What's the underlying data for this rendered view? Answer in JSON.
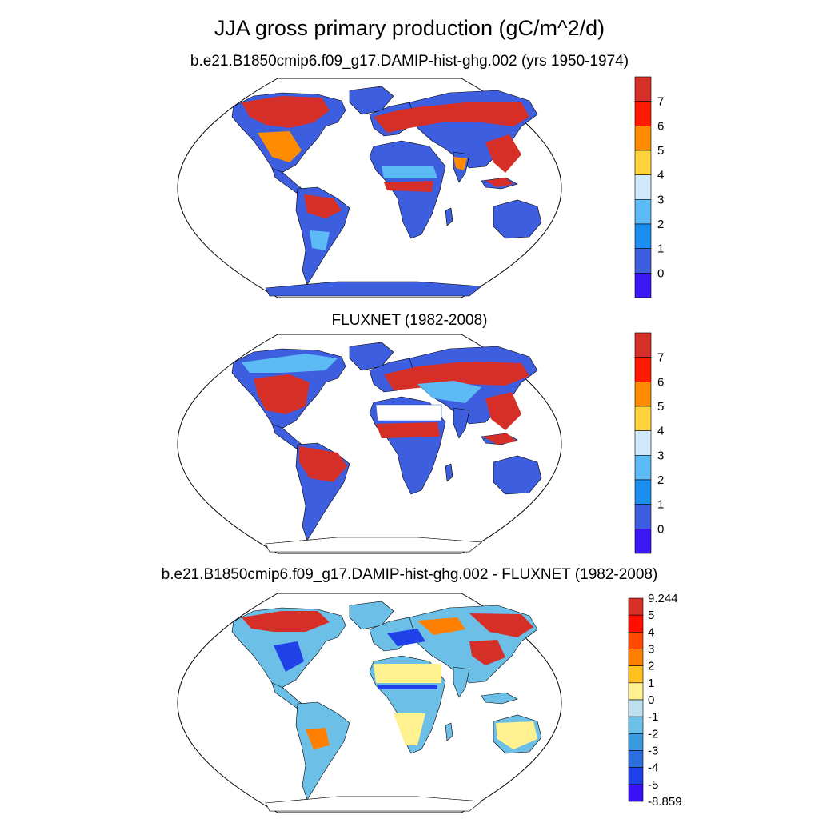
{
  "main_title": "JJA gross primary production (gC/m^2/d)",
  "panels": [
    {
      "subtitle": "b.e21.B1850cmip6.f09_g17.DAMIP-hist-ghg.002 (yrs 1950-1974)"
    },
    {
      "subtitle": "FLUXNET (1982-2008)"
    },
    {
      "subtitle": "b.e21.B1850cmip6.f09_g17.DAMIP-hist-ghg.002 - FLUXNET (1982-2008)"
    }
  ],
  "colorbar_abs": {
    "labels": [
      "7",
      "6",
      "5",
      "4",
      "3",
      "2",
      "1",
      "0"
    ],
    "colors": [
      "#d62f27",
      "#ff1a00",
      "#ff8c00",
      "#ffd23a",
      "#cfe8fb",
      "#5cbaf5",
      "#1a8ff0",
      "#3e5ee0",
      "#3a18f5"
    ]
  },
  "colorbar_diff": {
    "labels": [
      "9.244",
      "5",
      "4",
      "3",
      "2",
      "1",
      "0",
      "-1",
      "-2",
      "-3",
      "-4",
      "-5",
      "-8.859"
    ],
    "colors": [
      "#d62f27",
      "#ff0f00",
      "#ff4a00",
      "#ff8000",
      "#ffc020",
      "#fff090",
      "#bfe0f0",
      "#6cc0e8",
      "#3a9ae0",
      "#2a6ee0",
      "#2040e8",
      "#3a10f5"
    ]
  }
}
